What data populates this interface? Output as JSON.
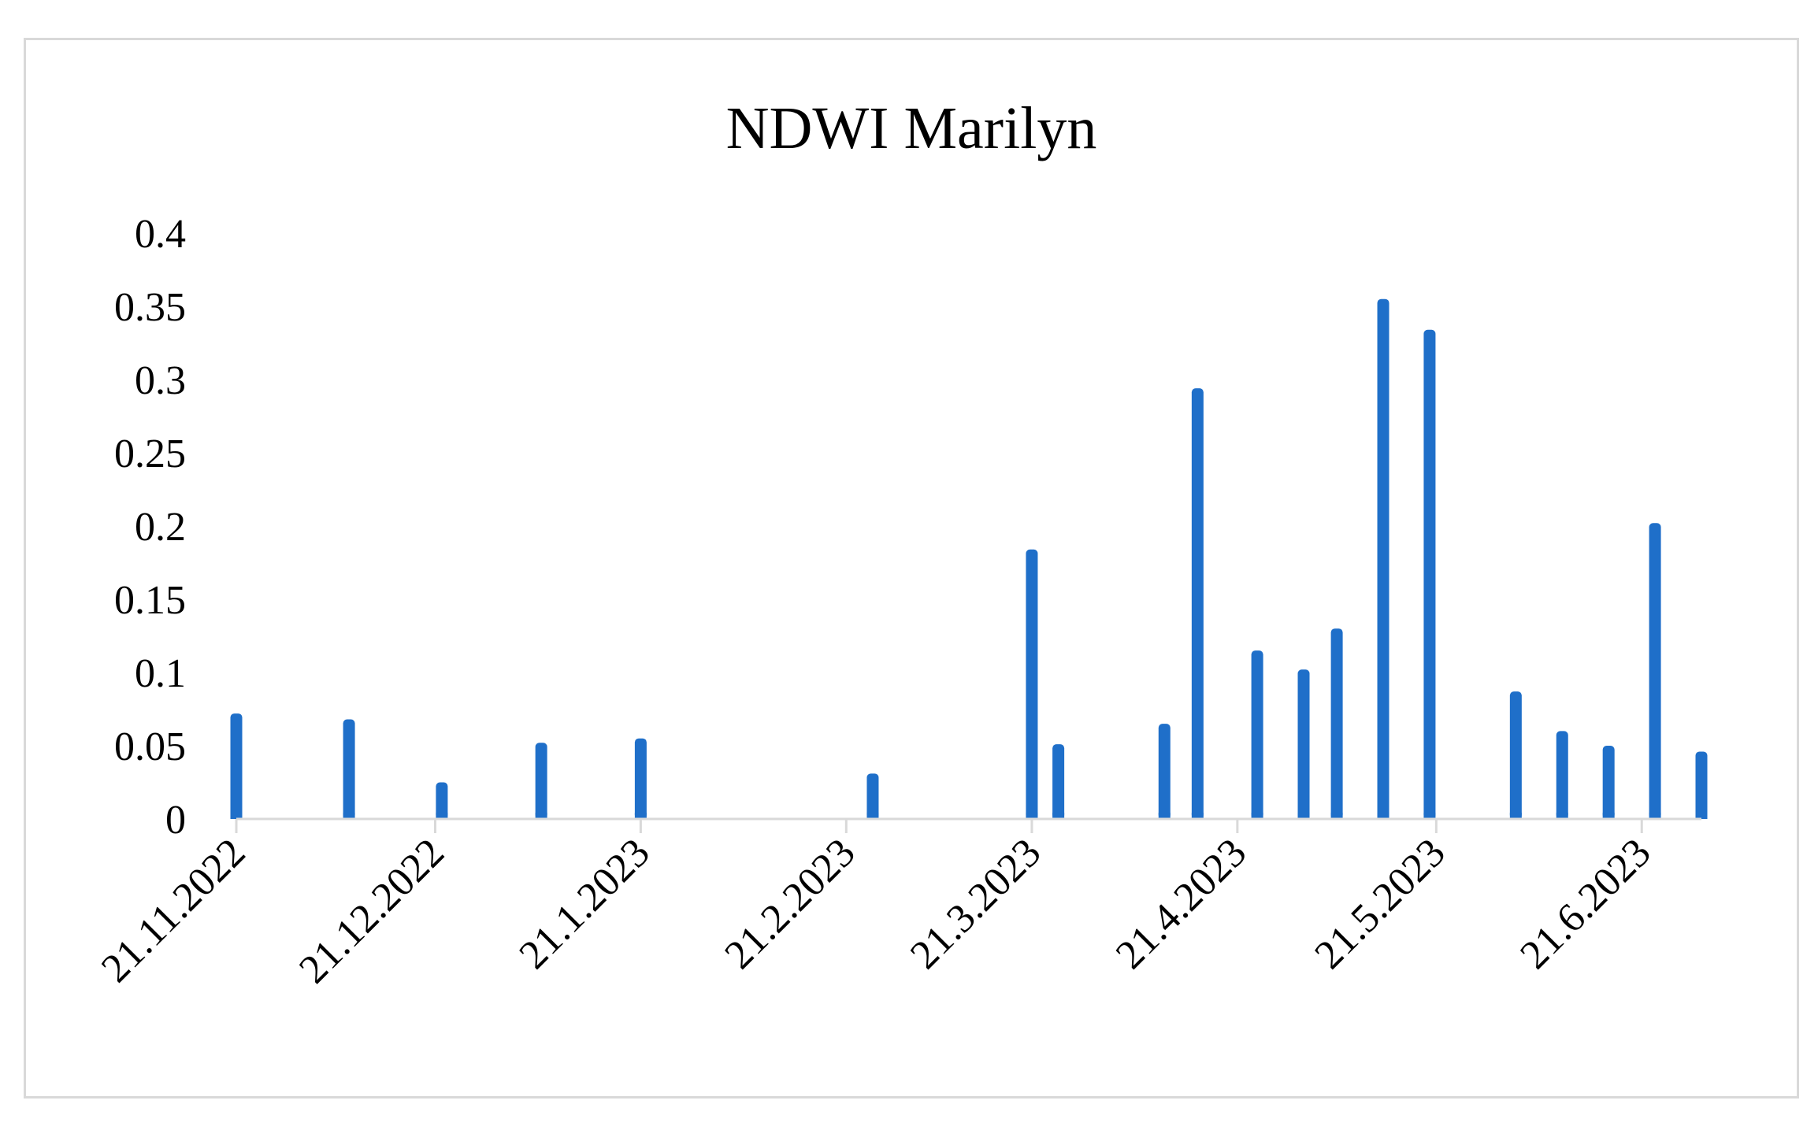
{
  "chart_data": {
    "type": "bar",
    "title": "NDWI Marilyn",
    "xlabel": "",
    "ylabel": "",
    "ylim": [
      0,
      0.4
    ],
    "xlim": [
      "2022-11-21",
      "2023-06-30"
    ],
    "grid": false,
    "legend": "none",
    "bar_color": "#1f6fc9",
    "axis_color": "#d9d9d9",
    "y_ticks": [
      "0",
      "0.05",
      "0.1",
      "0.15",
      "0.2",
      "0.25",
      "0.3",
      "0.35",
      "0.4"
    ],
    "x_ticks": [
      {
        "date": "2022-11-21",
        "label": "21.11.2022"
      },
      {
        "date": "2022-12-21",
        "label": "21.12.2022"
      },
      {
        "date": "2023-01-21",
        "label": "21.1.2023"
      },
      {
        "date": "2023-02-21",
        "label": "21.2.2023"
      },
      {
        "date": "2023-03-21",
        "label": "21.3.2023"
      },
      {
        "date": "2023-04-21",
        "label": "21.4.2023"
      },
      {
        "date": "2023-05-21",
        "label": "21.5.2023"
      },
      {
        "date": "2023-06-21",
        "label": "21.6.2023"
      }
    ],
    "points": [
      {
        "date": "2022-11-21",
        "value": 0.072
      },
      {
        "date": "2022-12-08",
        "value": 0.068
      },
      {
        "date": "2022-12-22",
        "value": 0.025
      },
      {
        "date": "2023-01-06",
        "value": 0.052
      },
      {
        "date": "2023-01-21",
        "value": 0.055
      },
      {
        "date": "2023-02-25",
        "value": 0.031
      },
      {
        "date": "2023-03-21",
        "value": 0.184
      },
      {
        "date": "2023-03-25",
        "value": 0.051
      },
      {
        "date": "2023-04-10",
        "value": 0.065
      },
      {
        "date": "2023-04-15",
        "value": 0.294
      },
      {
        "date": "2023-04-24",
        "value": 0.115
      },
      {
        "date": "2023-05-01",
        "value": 0.102
      },
      {
        "date": "2023-05-06",
        "value": 0.13
      },
      {
        "date": "2023-05-13",
        "value": 0.355
      },
      {
        "date": "2023-05-20",
        "value": 0.334
      },
      {
        "date": "2023-06-02",
        "value": 0.087
      },
      {
        "date": "2023-06-09",
        "value": 0.06
      },
      {
        "date": "2023-06-16",
        "value": 0.05
      },
      {
        "date": "2023-06-23",
        "value": 0.202
      },
      {
        "date": "2023-06-30",
        "value": 0.046
      }
    ]
  }
}
